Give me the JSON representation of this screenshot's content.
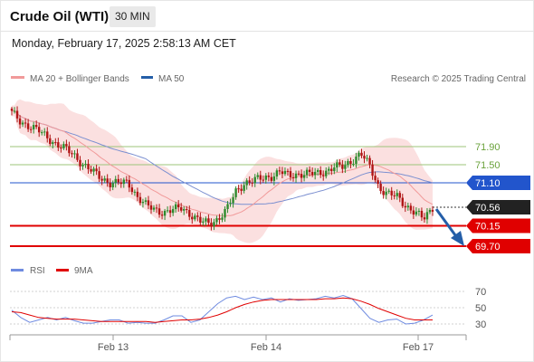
{
  "header": {
    "title": "Crude Oil (WTI)",
    "timeframe": "30 MIN"
  },
  "datetime": "Monday, February 17, 2025 2:58:13 AM CET",
  "legend": {
    "bb_label": "MA 20 + Bollinger Bands",
    "ma50_label": "MA 50",
    "credit": "Research © 2025 Trading Central",
    "rsi_label": "RSI",
    "rsi_ma_label": "9MA"
  },
  "colors": {
    "up": "#2e8b2e",
    "down": "#b01414",
    "bb_fill": "#fbe0e0",
    "ma20": "#f19a9a",
    "ma50": "#7b8fd0",
    "resistance": "#9dc47a",
    "pivot": "#2255cc",
    "support": "#e00000",
    "current": "#222222",
    "arrow": "#245ea8",
    "rsi": "#6f8be0",
    "rsi_ma": "#e00000"
  },
  "chart_data": {
    "type": "candlestick",
    "title": "Crude Oil (WTI)",
    "interval": "30 MIN",
    "x_tick_labels": [
      "Feb 13",
      "Feb 14",
      "Feb 17"
    ],
    "price_levels": [
      {
        "label": "71.90",
        "value": 71.9,
        "kind": "resistance"
      },
      {
        "label": "71.50",
        "value": 71.5,
        "kind": "resistance"
      },
      {
        "label": "71.10",
        "value": 71.1,
        "kind": "pivot"
      },
      {
        "label": "70.56",
        "value": 70.56,
        "kind": "current"
      },
      {
        "label": "70.15",
        "value": 70.15,
        "kind": "support"
      },
      {
        "label": "69.70",
        "value": 69.7,
        "kind": "support"
      }
    ],
    "close_path": [
      72.65,
      72.45,
      72.35,
      72.25,
      72.1,
      71.95,
      71.85,
      71.7,
      71.5,
      71.35,
      71.2,
      71.1,
      71.1,
      71.1,
      70.8,
      70.6,
      70.5,
      70.45,
      70.5,
      70.55,
      70.4,
      70.25,
      70.2,
      70.3,
      70.5,
      70.9,
      71.1,
      71.15,
      71.2,
      71.25,
      71.35,
      71.25,
      71.3,
      71.3,
      71.3,
      71.35,
      71.45,
      71.45,
      71.6,
      71.75,
      71.45,
      71.0,
      70.85,
      70.8,
      70.6,
      70.45,
      70.3,
      70.56
    ],
    "rsi": {
      "ticks": [
        70,
        50,
        30
      ],
      "ylim": [
        20,
        80
      ],
      "rsi_values": [
        47,
        38,
        32,
        35,
        38,
        35,
        38,
        34,
        31,
        31,
        33,
        35,
        35,
        31,
        32,
        31,
        31,
        35,
        40,
        40,
        32,
        35,
        45,
        55,
        62,
        64,
        60,
        63,
        60,
        62,
        57,
        61,
        59,
        60,
        61,
        64,
        62,
        65,
        61,
        49,
        37,
        32,
        35,
        36,
        30,
        31,
        35,
        41
      ],
      "ma9_values": [
        45,
        44,
        41,
        38,
        37,
        36,
        36,
        36,
        35,
        34,
        33,
        33,
        33,
        33,
        33,
        33,
        32,
        33,
        34,
        35,
        35,
        36,
        38,
        41,
        45,
        50,
        54,
        57,
        59,
        60,
        60,
        60,
        60,
        60,
        60,
        61,
        61,
        62,
        61,
        58,
        54,
        49,
        45,
        41,
        37,
        35,
        35,
        35
      ]
    }
  }
}
